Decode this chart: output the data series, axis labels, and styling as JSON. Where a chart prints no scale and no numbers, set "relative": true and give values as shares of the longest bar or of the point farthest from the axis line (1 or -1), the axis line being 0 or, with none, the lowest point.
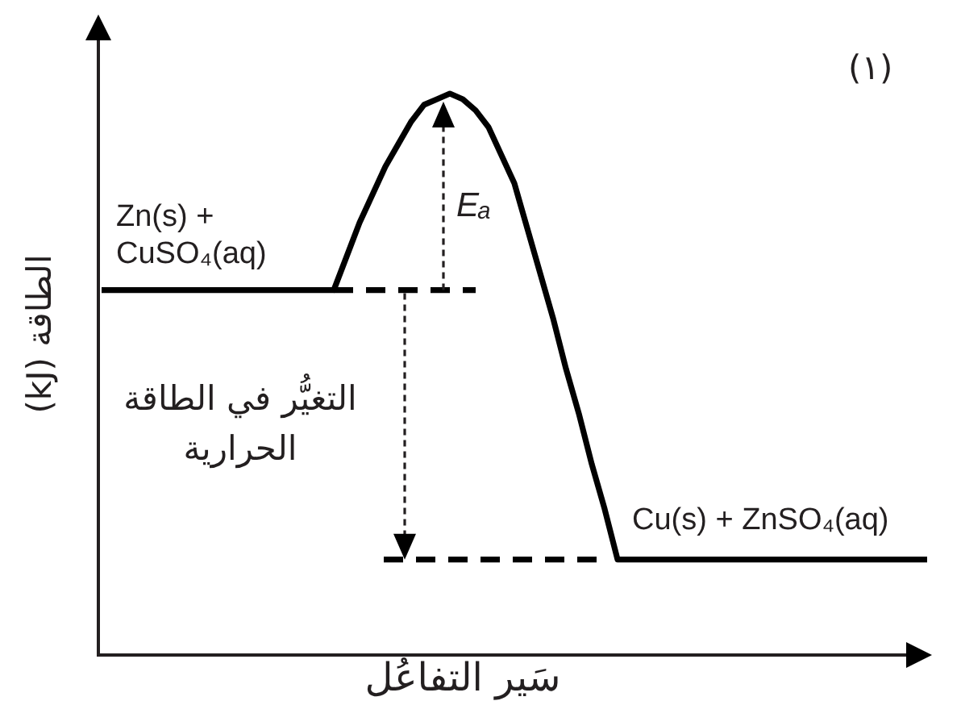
{
  "chart_data": {
    "type": "line",
    "title": "(١)",
    "xlabel": "سَير التفاعُل",
    "ylabel": "الطاقة (kJ)",
    "relative": true,
    "categories": [
      null,
      null,
      null,
      null,
      null,
      null,
      null,
      null,
      null,
      null,
      null,
      null,
      null,
      null,
      null,
      null,
      null,
      null,
      null,
      null,
      null,
      null,
      null,
      null,
      null,
      null,
      null,
      null,
      null,
      null,
      null,
      null,
      null,
      null,
      null,
      null,
      null,
      null,
      null,
      null,
      null,
      null,
      null,
      null,
      null,
      null,
      null,
      null,
      null,
      null,
      null,
      null,
      null,
      null,
      null,
      null,
      null,
      null,
      null,
      null,
      null,
      null,
      null,
      null,
      null
    ],
    "series": [
      {
        "color": "#000000",
        "values": [
          0.65,
          0.65,
          0.65,
          0.65,
          0.65,
          0.65,
          0.65,
          0.65,
          0.65,
          0.65,
          0.65,
          0.65,
          0.65,
          0.65,
          0.65,
          0.65,
          0.65,
          0.65,
          0.65,
          0.71,
          0.77,
          0.82,
          0.87,
          0.91,
          0.95,
          0.98,
          0.99,
          1,
          0.99,
          0.97,
          0.94,
          0.89,
          0.84,
          0.76,
          0.68,
          0.6,
          0.51,
          0.43,
          0.34,
          0.26,
          0.17,
          0.17,
          0.17,
          0.17,
          0.17,
          0.17,
          0.17,
          0.17,
          0.17,
          0.17,
          0.17,
          0.17,
          0.17,
          0.17,
          0.17,
          0.17,
          0.17,
          0.17,
          0.17,
          0.17,
          0.17,
          0.17,
          0.17,
          0.17,
          0.17
        ]
      }
    ],
    "ref_lines": [
      {
        "axis": "y",
        "value": 0.65,
        "line_style": "dashed",
        "color": "#000000"
      },
      {
        "axis": "y",
        "value": 0.17,
        "line_style": "dashed",
        "color": "#000000"
      }
    ],
    "annotations": [
      {
        "text": "Zn(s) + CuSO₄(aq)",
        "y": 0.65
      },
      {
        "text": "Cu(s) + ZnSO₄(aq)",
        "y": 0.17
      },
      "Eₐ",
      "التغيُّر في الطاقة الحرارية"
    ]
  }
}
